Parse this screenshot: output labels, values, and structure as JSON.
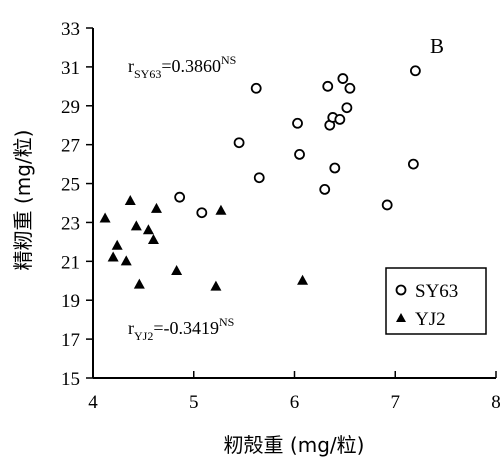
{
  "chart_data": {
    "type": "scatter",
    "title": "",
    "panel_label": "B",
    "xlabel": "籾殻重 (mg/粒)",
    "ylabel": "精籾重 (mg/粒)",
    "xlim": [
      4,
      8
    ],
    "ylim": [
      15,
      33
    ],
    "xticks": [
      4,
      5,
      6,
      7,
      8
    ],
    "yticks": [
      15,
      17,
      19,
      21,
      23,
      25,
      27,
      29,
      31,
      33
    ],
    "grid": false,
    "legend_position": "bottom-right",
    "series": [
      {
        "name": "SY63",
        "marker": "open-circle",
        "color": "#000000",
        "points": [
          [
            4.86,
            24.3
          ],
          [
            5.08,
            23.5
          ],
          [
            5.45,
            27.1
          ],
          [
            5.62,
            29.9
          ],
          [
            5.65,
            25.3
          ],
          [
            6.03,
            28.1
          ],
          [
            6.05,
            26.5
          ],
          [
            6.3,
            24.7
          ],
          [
            6.33,
            30.0
          ],
          [
            6.35,
            28.0
          ],
          [
            6.38,
            28.4
          ],
          [
            6.4,
            25.8
          ],
          [
            6.45,
            28.3
          ],
          [
            6.48,
            30.4
          ],
          [
            6.52,
            28.9
          ],
          [
            6.55,
            29.9
          ],
          [
            6.92,
            23.9
          ],
          [
            7.18,
            26.0
          ],
          [
            7.2,
            30.8
          ]
        ]
      },
      {
        "name": "YJ2",
        "marker": "filled-triangle",
        "color": "#000000",
        "points": [
          [
            4.12,
            23.2
          ],
          [
            4.2,
            21.2
          ],
          [
            4.24,
            21.8
          ],
          [
            4.33,
            21.0
          ],
          [
            4.37,
            24.1
          ],
          [
            4.43,
            22.8
          ],
          [
            4.46,
            19.8
          ],
          [
            4.55,
            22.6
          ],
          [
            4.6,
            22.1
          ],
          [
            4.63,
            23.7
          ],
          [
            4.83,
            20.5
          ],
          [
            5.22,
            19.7
          ],
          [
            5.27,
            23.6
          ],
          [
            6.08,
            20.0
          ]
        ]
      }
    ],
    "annotations": [
      {
        "text": "r",
        "sub": "SY63",
        "value": "=0.3860",
        "sup": "NS"
      },
      {
        "text": "r",
        "sub": "YJ2",
        "value": "=-0.3419",
        "sup": "NS"
      }
    ]
  }
}
